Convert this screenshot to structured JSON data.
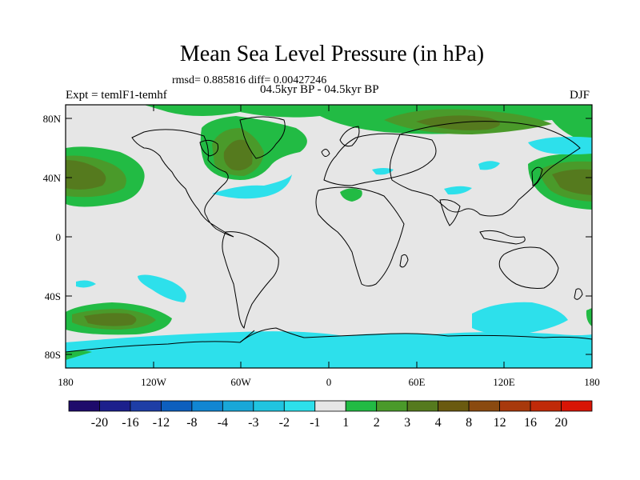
{
  "title": "Mean Sea Level Pressure (in hPa)",
  "stats_line": "rmsd= 0.885816 diff= 0.00427246",
  "period_line": "04.5kyr BP - 04.5kyr BP",
  "experiment_label": "Expt = temlF1-temhf",
  "season_label": "DJF",
  "map": {
    "ocean_color": "#e6e6e6",
    "coastline_color": "#000000",
    "lat_ticks": [
      "80N",
      "40N",
      "0",
      "40S",
      "80S"
    ],
    "lon_ticks": [
      "180",
      "120W",
      "60W",
      "0",
      "60E",
      "120E",
      "180"
    ]
  },
  "colorbar": {
    "colors": [
      "#1e0b6b",
      "#1c1f8c",
      "#1e3ea6",
      "#0d5fbe",
      "#1186d2",
      "#19a7d8",
      "#20c4e0",
      "#2de0eb",
      "#e6e6e6",
      "#22bb44",
      "#4a9a2a",
      "#557a1e",
      "#6a5a10",
      "#8a4a10",
      "#a8390c",
      "#c02a08",
      "#d81505"
    ],
    "labels": [
      "-20",
      "-16",
      "-12",
      "-8",
      "-4",
      "-3",
      "-2",
      "-1",
      "1",
      "2",
      "3",
      "4",
      "8",
      "12",
      "16",
      "20"
    ]
  }
}
